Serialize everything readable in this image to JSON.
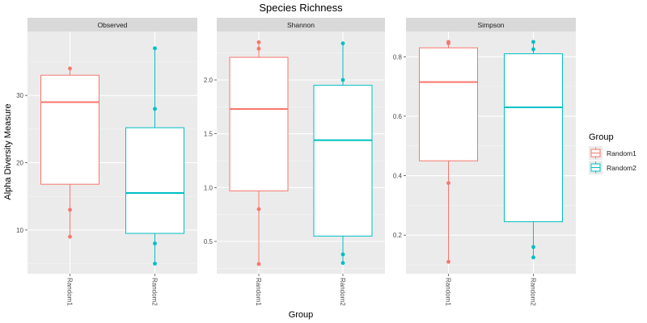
{
  "title": "Species Richness",
  "xlabel": "Group",
  "ylabel": "Alpha Diversity Measure",
  "legend": {
    "title": "Group",
    "position": "right",
    "items": [
      {
        "label": "Random1",
        "color": "#F8766D"
      },
      {
        "label": "Random2",
        "color": "#00BFC4"
      }
    ]
  },
  "colors": {
    "panel_bg": "#EBEBEB",
    "strip_bg": "#D9D9D9",
    "grid_major": "#FFFFFF",
    "text": "#333333"
  },
  "chart_data": [
    {
      "type": "box",
      "facet": "Observed",
      "categories": [
        "Random1",
        "Random2"
      ],
      "ylim": [
        3.5,
        39.5
      ],
      "yticks": [
        10,
        20,
        30
      ],
      "grid": true,
      "boxes": [
        {
          "group": "Random1",
          "min": 9,
          "q1": 16.8,
          "median": 29,
          "q3": 33,
          "max": 34,
          "points": [
            34,
            13,
            9
          ]
        },
        {
          "group": "Random2",
          "min": 5,
          "q1": 9.5,
          "median": 15.5,
          "q3": 25.2,
          "max": 37,
          "points": [
            37,
            28,
            8,
            5
          ]
        }
      ]
    },
    {
      "type": "box",
      "facet": "Shannon",
      "categories": [
        "Random1",
        "Random2"
      ],
      "ylim": [
        0.2,
        2.45
      ],
      "yticks": [
        0.5,
        1.0,
        1.5,
        2.0
      ],
      "grid": true,
      "boxes": [
        {
          "group": "Random1",
          "min": 0.29,
          "q1": 0.97,
          "median": 1.73,
          "q3": 2.21,
          "max": 2.35,
          "points": [
            2.35,
            2.29,
            0.8,
            0.29
          ]
        },
        {
          "group": "Random2",
          "min": 0.3,
          "q1": 0.55,
          "median": 1.44,
          "q3": 1.95,
          "max": 2.34,
          "points": [
            2.34,
            2.0,
            0.38,
            0.3
          ]
        }
      ]
    },
    {
      "type": "box",
      "facet": "Simpson",
      "categories": [
        "Random1",
        "Random2"
      ],
      "ylim": [
        0.07,
        0.885
      ],
      "yticks": [
        0.2,
        0.4,
        0.6,
        0.8
      ],
      "grid": true,
      "boxes": [
        {
          "group": "Random1",
          "min": 0.11,
          "q1": 0.45,
          "median": 0.715,
          "q3": 0.83,
          "max": 0.85,
          "points": [
            0.85,
            0.845,
            0.375,
            0.11
          ]
        },
        {
          "group": "Random2",
          "min": 0.125,
          "q1": 0.245,
          "median": 0.63,
          "q3": 0.81,
          "max": 0.85,
          "points": [
            0.85,
            0.825,
            0.16,
            0.125
          ]
        }
      ]
    }
  ]
}
